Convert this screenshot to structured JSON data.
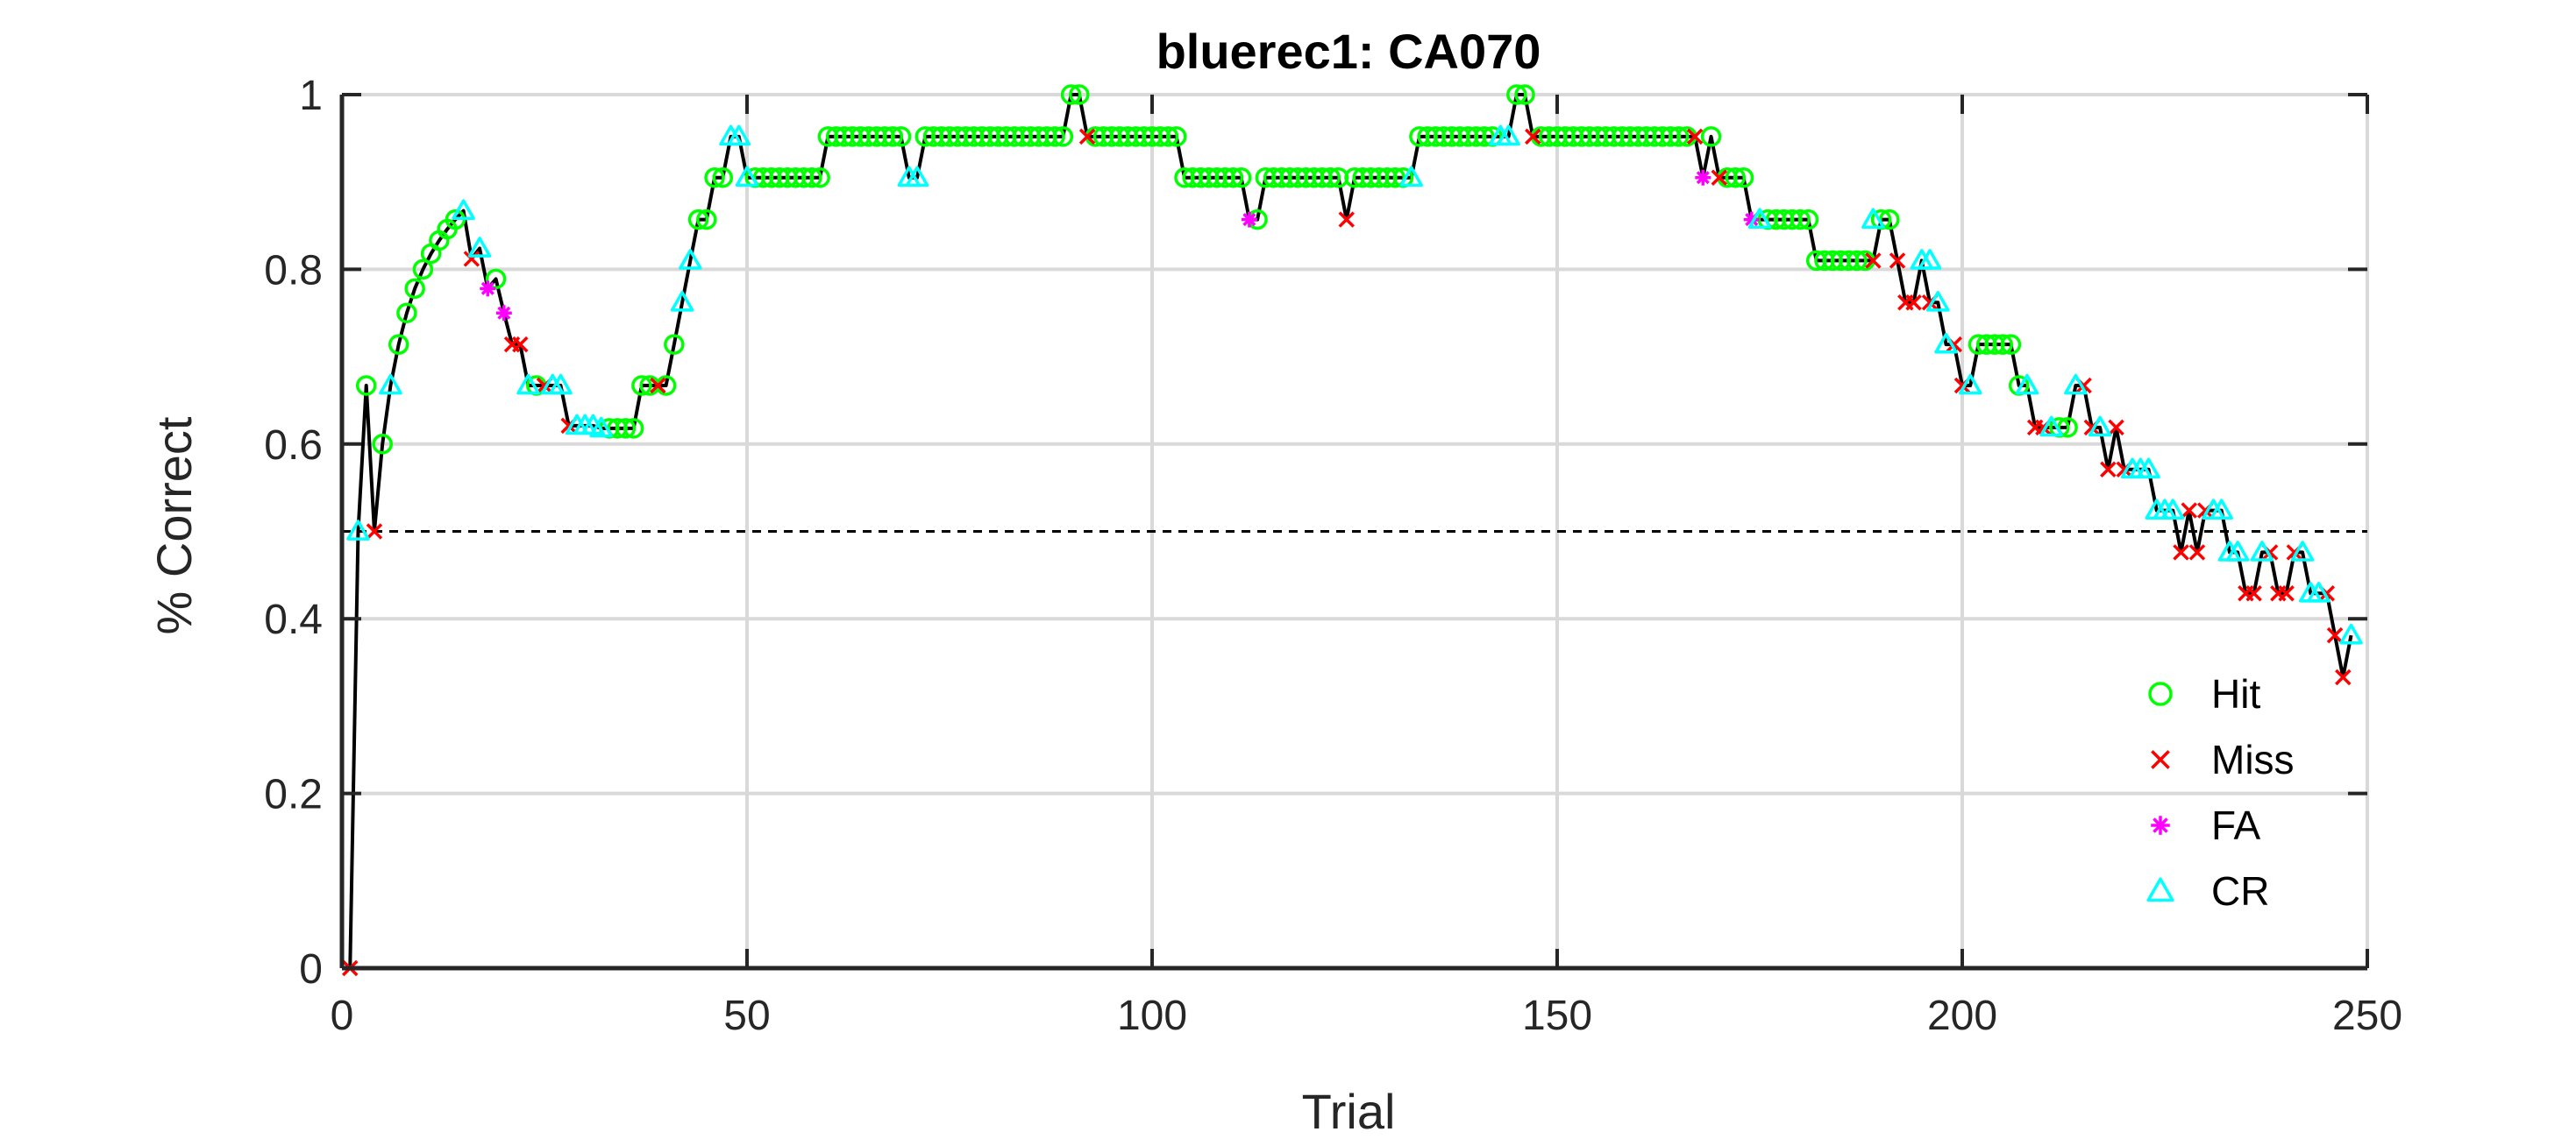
{
  "chart_data": {
    "type": "line",
    "title": "bluerec1: CA070",
    "xlabel": "Trial",
    "ylabel": "% Correct",
    "xlim": [
      0,
      250
    ],
    "ylim": [
      0,
      1
    ],
    "xticks": [
      0,
      50,
      100,
      150,
      200,
      250
    ],
    "yticks": [
      0,
      0.2,
      0.4,
      0.6,
      0.8,
      1
    ],
    "xtick_labels": [
      "0",
      "50",
      "100",
      "150",
      "200",
      "250"
    ],
    "ytick_labels": [
      "0",
      "0.2",
      "0.4",
      "0.6",
      "0.8",
      "1"
    ],
    "grid": true,
    "legend_position": "bottom-right",
    "reference_line": {
      "y": 0.5,
      "style": "dashed"
    },
    "colors": {
      "line": "#000000",
      "Hit": "#00ff00",
      "Miss": "#ff0000",
      "FA": "#ff00ff",
      "CR": "#00ffff",
      "grid": "#d9d9d9",
      "axis": "#262626"
    },
    "series": [
      {
        "name": "Hit",
        "marker": "circle",
        "points": [
          [
            3,
            0.667
          ],
          [
            5,
            0.6
          ],
          [
            7,
            0.714
          ],
          [
            8,
            0.75
          ],
          [
            9,
            0.778
          ],
          [
            10,
            0.8
          ],
          [
            11,
            0.818
          ],
          [
            12,
            0.833
          ],
          [
            13,
            0.846
          ],
          [
            14,
            0.857
          ],
          [
            19,
            0.789
          ],
          [
            24,
            0.667
          ],
          [
            33,
            0.618
          ],
          [
            34,
            0.618
          ],
          [
            35,
            0.618
          ],
          [
            36,
            0.618
          ],
          [
            37,
            0.667
          ],
          [
            38,
            0.667
          ],
          [
            40,
            0.667
          ],
          [
            41,
            0.714
          ],
          [
            44,
            0.857
          ],
          [
            45,
            0.857
          ],
          [
            46,
            0.905
          ],
          [
            47,
            0.905
          ],
          [
            51,
            0.905
          ],
          [
            52,
            0.905
          ],
          [
            53,
            0.905
          ],
          [
            54,
            0.905
          ],
          [
            55,
            0.905
          ],
          [
            56,
            0.905
          ],
          [
            57,
            0.905
          ],
          [
            58,
            0.905
          ],
          [
            59,
            0.905
          ],
          [
            60,
            0.952
          ],
          [
            61,
            0.952
          ],
          [
            62,
            0.952
          ],
          [
            63,
            0.952
          ],
          [
            64,
            0.952
          ],
          [
            65,
            0.952
          ],
          [
            66,
            0.952
          ],
          [
            67,
            0.952
          ],
          [
            68,
            0.952
          ],
          [
            69,
            0.952
          ],
          [
            72,
            0.952
          ],
          [
            73,
            0.952
          ],
          [
            74,
            0.952
          ],
          [
            75,
            0.952
          ],
          [
            76,
            0.952
          ],
          [
            77,
            0.952
          ],
          [
            78,
            0.952
          ],
          [
            79,
            0.952
          ],
          [
            80,
            0.952
          ],
          [
            81,
            0.952
          ],
          [
            82,
            0.952
          ],
          [
            83,
            0.952
          ],
          [
            84,
            0.952
          ],
          [
            85,
            0.952
          ],
          [
            86,
            0.952
          ],
          [
            87,
            0.952
          ],
          [
            88,
            0.952
          ],
          [
            89,
            0.952
          ],
          [
            90,
            1.0
          ],
          [
            91,
            1.0
          ],
          [
            93,
            0.952
          ],
          [
            94,
            0.952
          ],
          [
            95,
            0.952
          ],
          [
            96,
            0.952
          ],
          [
            97,
            0.952
          ],
          [
            98,
            0.952
          ],
          [
            99,
            0.952
          ],
          [
            100,
            0.952
          ],
          [
            101,
            0.952
          ],
          [
            102,
            0.952
          ],
          [
            103,
            0.952
          ],
          [
            104,
            0.905
          ],
          [
            105,
            0.905
          ],
          [
            106,
            0.905
          ],
          [
            107,
            0.905
          ],
          [
            108,
            0.905
          ],
          [
            109,
            0.905
          ],
          [
            110,
            0.905
          ],
          [
            111,
            0.905
          ],
          [
            113,
            0.857
          ],
          [
            114,
            0.905
          ],
          [
            115,
            0.905
          ],
          [
            116,
            0.905
          ],
          [
            117,
            0.905
          ],
          [
            118,
            0.905
          ],
          [
            119,
            0.905
          ],
          [
            120,
            0.905
          ],
          [
            121,
            0.905
          ],
          [
            122,
            0.905
          ],
          [
            123,
            0.905
          ],
          [
            125,
            0.905
          ],
          [
            126,
            0.905
          ],
          [
            127,
            0.905
          ],
          [
            128,
            0.905
          ],
          [
            129,
            0.905
          ],
          [
            130,
            0.905
          ],
          [
            131,
            0.905
          ],
          [
            133,
            0.952
          ],
          [
            134,
            0.952
          ],
          [
            135,
            0.952
          ],
          [
            136,
            0.952
          ],
          [
            137,
            0.952
          ],
          [
            138,
            0.952
          ],
          [
            139,
            0.952
          ],
          [
            140,
            0.952
          ],
          [
            141,
            0.952
          ],
          [
            142,
            0.952
          ],
          [
            145,
            1.0
          ],
          [
            146,
            1.0
          ],
          [
            148,
            0.952
          ],
          [
            149,
            0.952
          ],
          [
            150,
            0.952
          ],
          [
            151,
            0.952
          ],
          [
            152,
            0.952
          ],
          [
            153,
            0.952
          ],
          [
            154,
            0.952
          ],
          [
            155,
            0.952
          ],
          [
            156,
            0.952
          ],
          [
            157,
            0.952
          ],
          [
            158,
            0.952
          ],
          [
            159,
            0.952
          ],
          [
            160,
            0.952
          ],
          [
            161,
            0.952
          ],
          [
            162,
            0.952
          ],
          [
            163,
            0.952
          ],
          [
            164,
            0.952
          ],
          [
            165,
            0.952
          ],
          [
            166,
            0.952
          ],
          [
            169,
            0.952
          ],
          [
            171,
            0.905
          ],
          [
            172,
            0.905
          ],
          [
            173,
            0.905
          ],
          [
            176,
            0.857
          ],
          [
            177,
            0.857
          ],
          [
            178,
            0.857
          ],
          [
            179,
            0.857
          ],
          [
            180,
            0.857
          ],
          [
            181,
            0.857
          ],
          [
            182,
            0.81
          ],
          [
            183,
            0.81
          ],
          [
            184,
            0.81
          ],
          [
            185,
            0.81
          ],
          [
            186,
            0.81
          ],
          [
            187,
            0.81
          ],
          [
            188,
            0.81
          ],
          [
            190,
            0.857
          ],
          [
            191,
            0.857
          ],
          [
            202,
            0.714
          ],
          [
            203,
            0.714
          ],
          [
            204,
            0.714
          ],
          [
            205,
            0.714
          ],
          [
            206,
            0.714
          ],
          [
            207,
            0.667
          ],
          [
            212,
            0.619
          ],
          [
            213,
            0.619
          ]
        ]
      },
      {
        "name": "Miss",
        "marker": "x",
        "points": [
          [
            1,
            0.0
          ],
          [
            4,
            0.5
          ],
          [
            16,
            0.812
          ],
          [
            21,
            0.714
          ],
          [
            22,
            0.714
          ],
          [
            25,
            0.667
          ],
          [
            28,
            0.621
          ],
          [
            39,
            0.667
          ],
          [
            92,
            0.952
          ],
          [
            124,
            0.857
          ],
          [
            147,
            0.952
          ],
          [
            167,
            0.952
          ],
          [
            170,
            0.905
          ],
          [
            189,
            0.81
          ],
          [
            192,
            0.81
          ],
          [
            193,
            0.762
          ],
          [
            194,
            0.762
          ],
          [
            196,
            0.762
          ],
          [
            199,
            0.714
          ],
          [
            200,
            0.667
          ],
          [
            209,
            0.619
          ],
          [
            210,
            0.619
          ],
          [
            215,
            0.667
          ],
          [
            216,
            0.619
          ],
          [
            218,
            0.571
          ],
          [
            219,
            0.619
          ],
          [
            220,
            0.571
          ],
          [
            227,
            0.476
          ],
          [
            228,
            0.524
          ],
          [
            229,
            0.476
          ],
          [
            230,
            0.524
          ],
          [
            235,
            0.429
          ],
          [
            236,
            0.429
          ],
          [
            238,
            0.476
          ],
          [
            239,
            0.429
          ],
          [
            240,
            0.429
          ],
          [
            241,
            0.476
          ],
          [
            245,
            0.429
          ],
          [
            246,
            0.381
          ],
          [
            247,
            0.333
          ]
        ]
      },
      {
        "name": "FA",
        "marker": "asterisk",
        "points": [
          [
            18,
            0.778
          ],
          [
            20,
            0.75
          ],
          [
            112,
            0.857
          ],
          [
            168,
            0.905
          ],
          [
            174,
            0.857
          ]
        ]
      },
      {
        "name": "CR",
        "marker": "triangle",
        "points": [
          [
            2,
            0.5
          ],
          [
            6,
            0.667
          ],
          [
            15,
            0.867
          ],
          [
            17,
            0.824
          ],
          [
            23,
            0.667
          ],
          [
            26,
            0.667
          ],
          [
            27,
            0.667
          ],
          [
            29,
            0.621
          ],
          [
            30,
            0.621
          ],
          [
            31,
            0.621
          ],
          [
            32,
            0.618
          ],
          [
            42,
            0.762
          ],
          [
            43,
            0.81
          ],
          [
            48,
            0.952
          ],
          [
            49,
            0.952
          ],
          [
            50,
            0.905
          ],
          [
            70,
            0.905
          ],
          [
            71,
            0.905
          ],
          [
            132,
            0.905
          ],
          [
            143,
            0.952
          ],
          [
            144,
            0.952
          ],
          [
            175,
            0.857
          ],
          [
            189,
            0.857
          ],
          [
            195,
            0.81
          ],
          [
            196,
            0.81
          ],
          [
            197,
            0.762
          ],
          [
            198,
            0.714
          ],
          [
            201,
            0.667
          ],
          [
            208,
            0.667
          ],
          [
            211,
            0.619
          ],
          [
            214,
            0.667
          ],
          [
            217,
            0.619
          ],
          [
            221,
            0.571
          ],
          [
            222,
            0.571
          ],
          [
            223,
            0.571
          ],
          [
            224,
            0.524
          ],
          [
            225,
            0.524
          ],
          [
            226,
            0.524
          ],
          [
            231,
            0.524
          ],
          [
            232,
            0.524
          ],
          [
            233,
            0.476
          ],
          [
            234,
            0.476
          ],
          [
            237,
            0.476
          ],
          [
            242,
            0.476
          ],
          [
            243,
            0.429
          ],
          [
            244,
            0.429
          ],
          [
            248,
            0.381
          ]
        ]
      }
    ]
  }
}
